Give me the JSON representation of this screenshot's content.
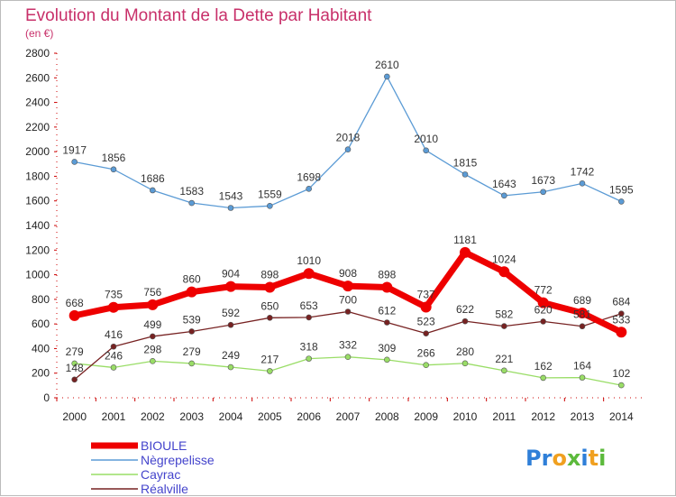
{
  "chart_data": {
    "type": "line",
    "title": "Evolution du Montant de la Dette par Habitant",
    "subtitle": "(en €)",
    "categories": [
      "2000",
      "2001",
      "2002",
      "2003",
      "2004",
      "2005",
      "2006",
      "2007",
      "2008",
      "2009",
      "2010",
      "2011",
      "2012",
      "2013",
      "2014"
    ],
    "ylim": [
      0,
      2800
    ],
    "yticks": [
      0,
      200,
      400,
      600,
      800,
      1000,
      1200,
      1400,
      1600,
      1800,
      2000,
      2200,
      2400,
      2600,
      2800
    ],
    "grid": false,
    "legend_position": "bottom-left",
    "series": [
      {
        "name": "BIOULE",
        "color": "#ee0000",
        "values": [
          668,
          735,
          756,
          860,
          904,
          898,
          1010,
          908,
          898,
          737,
          1181,
          1024,
          772,
          689,
          533
        ]
      },
      {
        "name": "Nègrepelisse",
        "color": "#5b9bd5",
        "values": [
          1917,
          1856,
          1686,
          1583,
          1543,
          1559,
          1698,
          2018,
          2610,
          2010,
          1815,
          1643,
          1673,
          1742,
          1595
        ]
      },
      {
        "name": "Cayrac",
        "color": "#99dd66",
        "values": [
          279,
          246,
          298,
          279,
          249,
          217,
          318,
          332,
          309,
          266,
          280,
          221,
          162,
          164,
          102
        ]
      },
      {
        "name": "Réalville",
        "color": "#772222",
        "values": [
          148,
          416,
          499,
          539,
          592,
          650,
          653,
          700,
          612,
          523,
          622,
          582,
          620,
          581,
          684
        ]
      }
    ]
  },
  "logo": {
    "p1": "Pr",
    "o": "o",
    "x": "x",
    "i": "i",
    "t": "t",
    "i2": "i"
  }
}
